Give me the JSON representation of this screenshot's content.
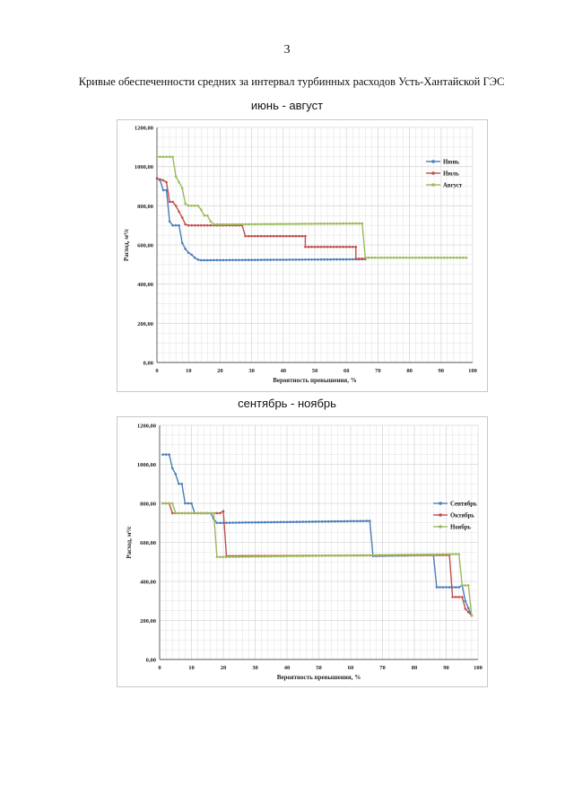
{
  "page_number": "3",
  "document_title": "Кривые обеспеченности средних за интервал турбинных расходов Усть-Хантайской ГЭС",
  "colors": {
    "series1": "#4a7ebb",
    "series2": "#c0504d",
    "series3": "#9bbb59",
    "grid": "#d9d9d9"
  },
  "chart_data": [
    {
      "type": "line",
      "title": "июнь - август",
      "xlabel": "Вероятность превышения, %",
      "ylabel": "Расход, м³/с",
      "xlim": [
        0,
        100
      ],
      "ylim": [
        0,
        1200
      ],
      "xticks": [
        0,
        10,
        20,
        30,
        40,
        50,
        60,
        70,
        80,
        90,
        100
      ],
      "yticks": [
        0,
        200,
        400,
        600,
        800,
        1000,
        1200
      ],
      "ytick_labels": [
        "0,00",
        "200,00",
        "400,00",
        "600,00",
        "800,00",
        "1000,00",
        "1200,00"
      ],
      "legend_position": "right",
      "series": [
        {
          "name": "Июнь",
          "color_key": "series1",
          "points": [
            [
              0,
              940
            ],
            [
              1,
              930
            ],
            [
              2,
              880
            ],
            [
              3,
              880
            ],
            [
              4,
              720
            ],
            [
              5,
              700
            ],
            [
              6,
              700
            ],
            [
              7,
              700
            ],
            [
              8,
              610
            ],
            [
              9,
              580
            ],
            [
              10,
              560
            ],
            [
              11,
              550
            ],
            [
              12,
              535
            ],
            [
              13,
              525
            ],
            [
              14,
              522
            ],
            [
              66,
              527
            ]
          ]
        },
        {
          "name": "Июль",
          "color_key": "series2",
          "points": [
            [
              0,
              940
            ],
            [
              1,
              935
            ],
            [
              2,
              930
            ],
            [
              3,
              920
            ],
            [
              4,
              820
            ],
            [
              5,
              820
            ],
            [
              6,
              800
            ],
            [
              7,
              770
            ],
            [
              8,
              740
            ],
            [
              9,
              705
            ],
            [
              10,
              700
            ],
            [
              27,
              700
            ],
            [
              28,
              645
            ],
            [
              47,
              645
            ],
            [
              47,
              590
            ],
            [
              63,
              590
            ],
            [
              63,
              530
            ],
            [
              66,
              530
            ]
          ]
        },
        {
          "name": "Август",
          "color_key": "series3",
          "points": [
            [
              0,
              1050
            ],
            [
              5,
              1050
            ],
            [
              6,
              950
            ],
            [
              7,
              920
            ],
            [
              8,
              890
            ],
            [
              9,
              810
            ],
            [
              10,
              800
            ],
            [
              13,
              800
            ],
            [
              14,
              780
            ],
            [
              15,
              750
            ],
            [
              16,
              750
            ],
            [
              17,
              720
            ],
            [
              18,
              705
            ],
            [
              20,
              705
            ],
            [
              65,
              710
            ],
            [
              66,
              535
            ],
            [
              98,
              535
            ]
          ]
        }
      ]
    },
    {
      "type": "line",
      "title": "сентябрь - ноябрь",
      "xlabel": "Вероятность превышения, %",
      "ylabel": "Расход, м³/с",
      "xlim": [
        0,
        100
      ],
      "ylim": [
        0,
        1200
      ],
      "xticks": [
        0,
        10,
        20,
        30,
        40,
        50,
        60,
        70,
        80,
        90,
        100
      ],
      "yticks": [
        0,
        200,
        400,
        600,
        800,
        1000,
        1200
      ],
      "ytick_labels": [
        "0,00",
        "200,00",
        "400,00",
        "600,00",
        "800,00",
        "1000,00",
        "1200,00"
      ],
      "legend_position": "right",
      "series": [
        {
          "name": "Сентябрь",
          "color_key": "series1",
          "points": [
            [
              1,
              1050
            ],
            [
              3,
              1050
            ],
            [
              4,
              980
            ],
            [
              5,
              950
            ],
            [
              6,
              900
            ],
            [
              7,
              900
            ],
            [
              8,
              800
            ],
            [
              10,
              800
            ],
            [
              11,
              750
            ],
            [
              16,
              750
            ],
            [
              17,
              720
            ],
            [
              18,
              700
            ],
            [
              66,
              710
            ],
            [
              67,
              530
            ],
            [
              86,
              535
            ],
            [
              87,
              370
            ],
            [
              94,
              370
            ],
            [
              95,
              380
            ],
            [
              96,
              300
            ],
            [
              98,
              225
            ]
          ]
        },
        {
          "name": "Октябрь",
          "color_key": "series2",
          "points": [
            [
              1,
              800
            ],
            [
              3,
              800
            ],
            [
              4,
              750
            ],
            [
              19,
              750
            ],
            [
              20,
              760
            ],
            [
              21,
              530
            ],
            [
              91,
              535
            ],
            [
              92,
              320
            ],
            [
              94,
              320
            ],
            [
              95,
              320
            ],
            [
              96,
              260
            ],
            [
              98,
              225
            ]
          ]
        },
        {
          "name": "Ноябрь",
          "color_key": "series3",
          "points": [
            [
              1,
              800
            ],
            [
              4,
              800
            ],
            [
              5,
              750
            ],
            [
              16,
              750
            ],
            [
              17,
              750
            ],
            [
              18,
              525
            ],
            [
              94,
              540
            ],
            [
              95,
              380
            ],
            [
              97,
              380
            ],
            [
              98,
              225
            ]
          ]
        }
      ]
    }
  ]
}
